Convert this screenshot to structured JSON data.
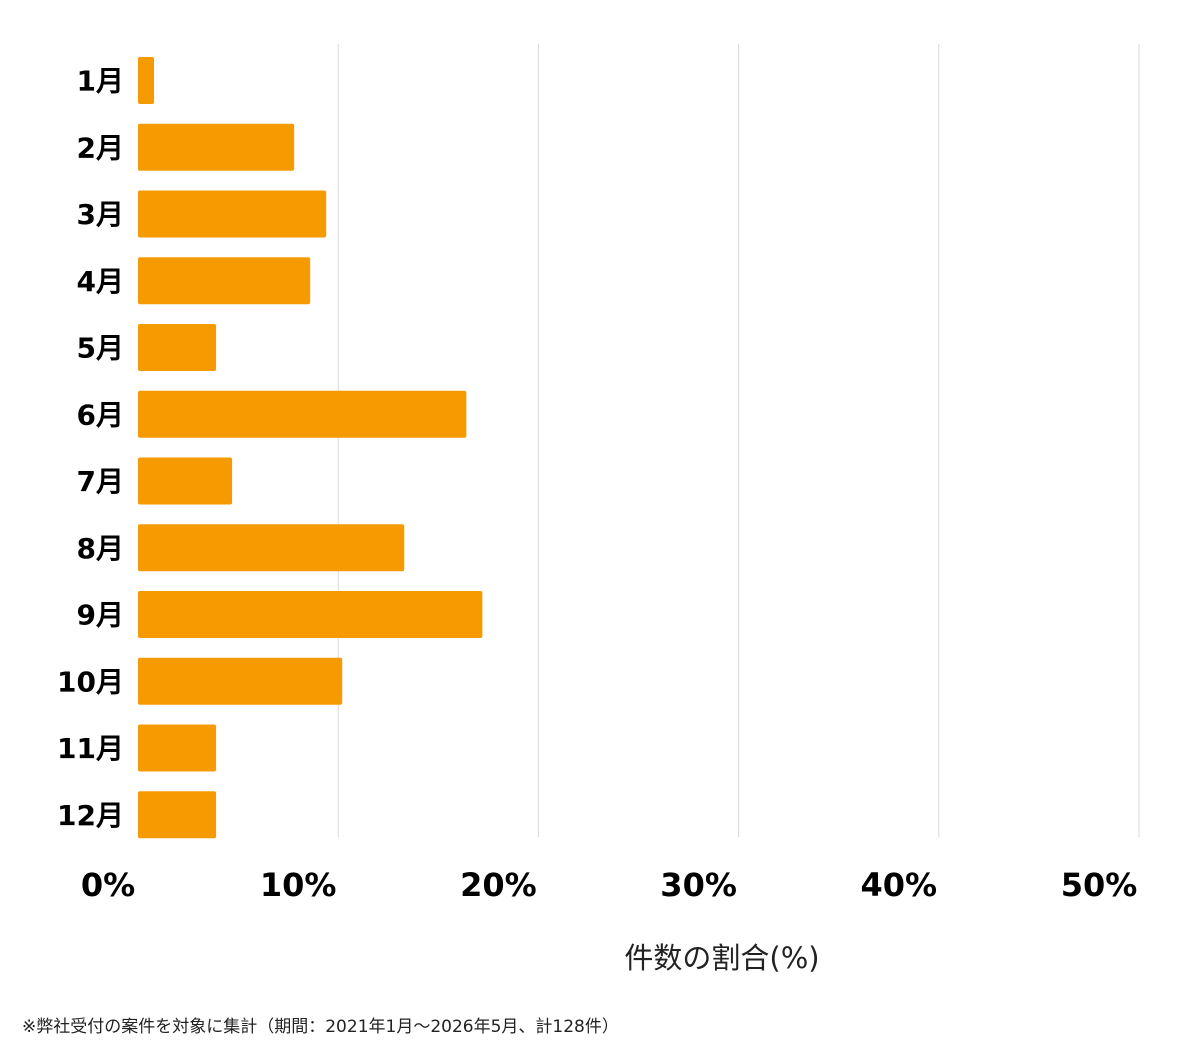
{
  "chart_data": {
    "type": "bar",
    "orientation": "horizontal",
    "categories": [
      "1月",
      "2月",
      "3月",
      "4月",
      "5月",
      "6月",
      "7月",
      "8月",
      "9月",
      "10月",
      "11月",
      "12月"
    ],
    "values": [
      0.8,
      7.8,
      9.4,
      8.6,
      3.9,
      16.4,
      4.7,
      13.3,
      17.2,
      10.2,
      3.9,
      3.9
    ],
    "xlabel": "件数の割合(%)",
    "ylabel": "",
    "xlim": [
      0,
      50
    ],
    "ticks": [
      0,
      10,
      20,
      30,
      40,
      50
    ],
    "tick_labels": [
      "0%",
      "10%",
      "20%",
      "30%",
      "40%",
      "50%"
    ],
    "grid": true,
    "bar_color": "#F59A00",
    "grid_color": "#d9d9d9"
  },
  "footnote": "※弊社受付の案件を対象に集計（期間：2021年1月～2026年5月、計128件）"
}
